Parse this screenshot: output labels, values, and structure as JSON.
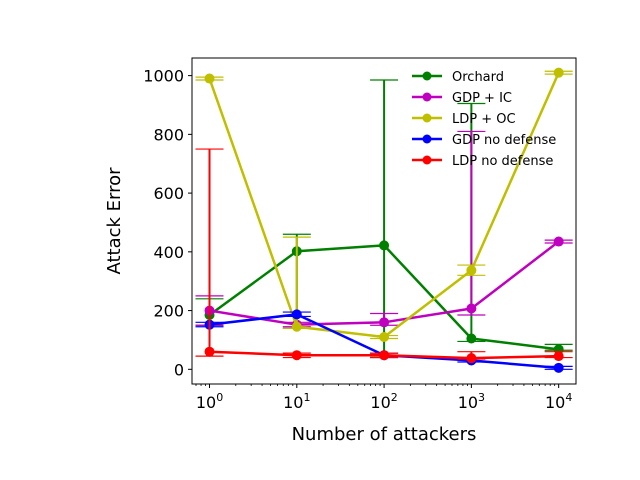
{
  "chart_data": {
    "type": "line",
    "xscale": "log",
    "x": [
      1,
      10,
      100,
      1000,
      10000
    ],
    "xlim": [
      0.63,
      15800
    ],
    "ylim": [
      -50,
      1060
    ],
    "xticks": [
      1,
      10,
      100,
      1000,
      10000
    ],
    "xtick_labels": [
      {
        "base": "10",
        "exp": "0"
      },
      {
        "base": "10",
        "exp": "1"
      },
      {
        "base": "10",
        "exp": "2"
      },
      {
        "base": "10",
        "exp": "3"
      },
      {
        "base": "10",
        "exp": "4"
      }
    ],
    "yticks": [
      0,
      200,
      400,
      600,
      800,
      1000
    ],
    "ytick_labels": [
      "0",
      "200",
      "400",
      "600",
      "800",
      "1000"
    ],
    "xlabel": "Number of attackers",
    "ylabel": "Attack Error",
    "grid": false,
    "legend_position": "top-right",
    "series": [
      {
        "name": "Orchard",
        "color": "#008000",
        "values": [
          185,
          402,
          422,
          105,
          68
        ],
        "err_low": [
          150,
          140,
          45,
          95,
          65
        ],
        "err_high": [
          240,
          460,
          985,
          905,
          85
        ]
      },
      {
        "name": "GDP + IC",
        "color": "#bf00bf",
        "values": [
          200,
          152,
          160,
          207,
          435
        ],
        "err_low": [
          150,
          145,
          150,
          185,
          430
        ],
        "err_high": [
          250,
          160,
          190,
          810,
          440
        ]
      },
      {
        "name": "LDP + OC",
        "color": "#bfbf00",
        "values": [
          990,
          145,
          110,
          337,
          1010
        ],
        "err_low": [
          985,
          140,
          105,
          320,
          1005
        ],
        "err_high": [
          995,
          450,
          115,
          355,
          1015
        ]
      },
      {
        "name": "GDP no defense",
        "color": "#0000ff",
        "values": [
          152,
          187,
          48,
          30,
          5
        ],
        "err_low": [
          145,
          180,
          40,
          25,
          0
        ],
        "err_high": [
          160,
          195,
          55,
          40,
          10
        ]
      },
      {
        "name": "LDP no defense",
        "color": "#ff0000",
        "values": [
          60,
          48,
          48,
          38,
          45
        ],
        "err_low": [
          45,
          40,
          40,
          35,
          40
        ],
        "err_high": [
          750,
          55,
          55,
          60,
          60
        ]
      }
    ]
  }
}
